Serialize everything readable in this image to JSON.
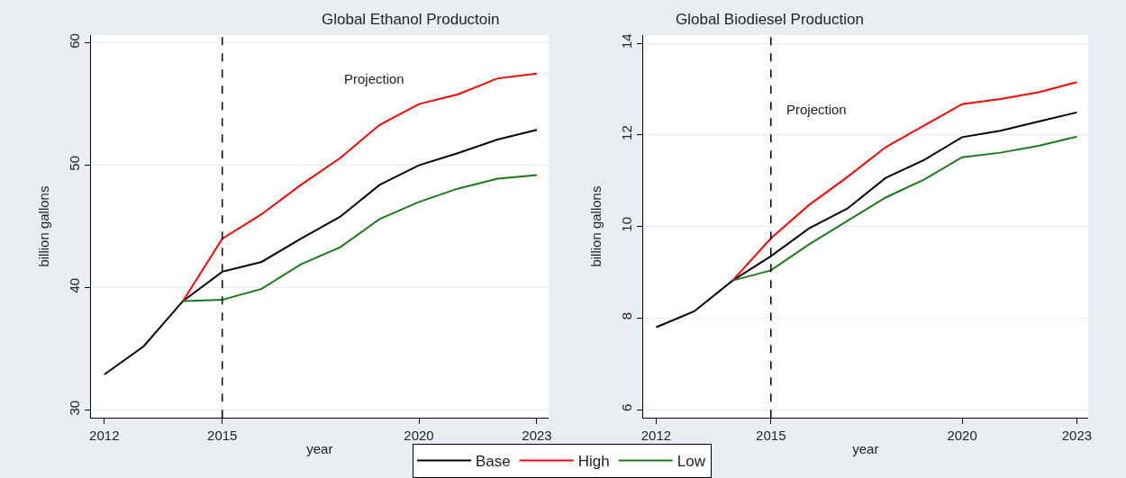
{
  "chart_data": [
    {
      "type": "line",
      "title": "Global Ethanol Productoin",
      "xlabel": "year",
      "ylabel": "billion gallons",
      "x": [
        2012,
        2013,
        2014,
        2015,
        2016,
        2017,
        2018,
        2019,
        2020,
        2021,
        2022,
        2023
      ],
      "series": [
        {
          "name": "Base",
          "color": "#000000",
          "values": [
            32.9,
            35.2,
            38.9,
            41.3,
            42.1,
            44.0,
            45.8,
            48.4,
            50.0,
            51.0,
            52.1,
            52.9
          ]
        },
        {
          "name": "High",
          "color": "#ff0000",
          "values": [
            null,
            null,
            38.9,
            44.0,
            46.0,
            48.4,
            50.6,
            53.3,
            55.0,
            55.8,
            57.1,
            57.5
          ]
        },
        {
          "name": "Low",
          "color": "#1a7a1a",
          "values": [
            null,
            null,
            38.9,
            39.0,
            39.9,
            41.9,
            43.3,
            45.6,
            47.0,
            48.1,
            48.9,
            49.2
          ]
        }
      ],
      "xlim": [
        2011.65,
        2023.3
      ],
      "xticks": [
        2012,
        2015,
        2020,
        2023
      ],
      "ylim": [
        29.35,
        60.65
      ],
      "yticks": [
        30,
        40,
        50,
        60
      ],
      "ref_lines": [
        {
          "axis": "x",
          "value": 2015,
          "color": "#000000",
          "line_style": "dashed"
        }
      ],
      "annotations": [
        "Projection"
      ],
      "grid": "y",
      "legend": "bottom",
      "marker": "none",
      "line_style": "solid"
    },
    {
      "type": "line",
      "title": "Global Biodiesel Production",
      "xlabel": "year",
      "ylabel": "billion gallons",
      "x": [
        2012,
        2013,
        2014,
        2015,
        2016,
        2017,
        2018,
        2019,
        2020,
        2021,
        2022,
        2023
      ],
      "series": [
        {
          "name": "Base",
          "color": "#000000",
          "values": [
            7.8,
            8.15,
            8.82,
            9.35,
            9.96,
            10.39,
            11.06,
            11.45,
            11.95,
            12.09,
            12.29,
            12.49
          ]
        },
        {
          "name": "High",
          "color": "#ff0000",
          "values": [
            null,
            null,
            8.82,
            9.74,
            10.47,
            11.08,
            11.73,
            12.2,
            12.67,
            12.78,
            12.93,
            13.15
          ]
        },
        {
          "name": "Low",
          "color": "#1a7a1a",
          "values": [
            null,
            null,
            8.82,
            9.04,
            9.61,
            10.12,
            10.63,
            11.02,
            11.51,
            11.61,
            11.76,
            11.96
          ]
        }
      ],
      "xlim": [
        2011.65,
        2023.3
      ],
      "xticks": [
        2012,
        2015,
        2020,
        2023
      ],
      "ylim": [
        5.82,
        14.18
      ],
      "yticks": [
        6,
        8,
        10,
        12,
        14
      ],
      "ref_lines": [
        {
          "axis": "x",
          "value": 2015,
          "color": "#000000",
          "line_style": "dashed"
        }
      ],
      "annotations": [
        "Projection"
      ],
      "grid": "y",
      "legend": "bottom",
      "marker": "none",
      "line_style": "solid"
    }
  ]
}
